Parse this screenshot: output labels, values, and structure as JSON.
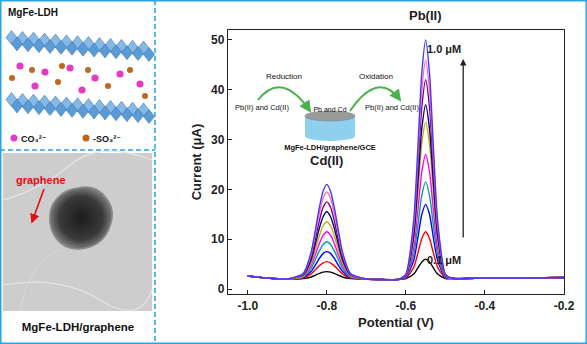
{
  "figure": {
    "schematic": {
      "title": "MgFe-LDH",
      "legend": [
        {
          "label": "CO₃²⁻",
          "color": "#e23cc4"
        },
        {
          "label": "-SO₃²⁻",
          "color": "#c0661e"
        }
      ]
    },
    "micrograph": {
      "pointer": "graphene",
      "caption": "MgFe-LDH/graphene"
    },
    "inset": {
      "reduction": "Reduction",
      "oxidation": "Oxidation",
      "species": "Pb(II) and Cd(II)",
      "deposit": "Pb and Cd",
      "electrode": "MgFe-LDH/graphene/GCE"
    }
  },
  "chart_data": {
    "type": "line",
    "xlabel": "Potential (V)",
    "ylabel": "Current (μA)",
    "peak_labels": [
      "Cd(II)",
      "Pb(II)"
    ],
    "range_labels": {
      "low": "0.1 μM",
      "high": "1.0 μM"
    },
    "x": [
      -1.0,
      -0.95,
      -0.9,
      -0.86,
      -0.84,
      -0.82,
      -0.81,
      -0.8,
      -0.79,
      -0.78,
      -0.76,
      -0.74,
      -0.7,
      -0.66,
      -0.62,
      -0.6,
      -0.58,
      -0.57,
      -0.56,
      -0.55,
      -0.54,
      -0.53,
      -0.52,
      -0.5,
      -0.48,
      -0.45,
      -0.4,
      -0.3,
      -0.2
    ],
    "series": [
      {
        "color": "#000000",
        "values": [
          2.6,
          2.2,
          2.0,
          2.1,
          2.4,
          3.1,
          3.4,
          3.5,
          3.4,
          3.1,
          2.4,
          2.1,
          2.0,
          1.9,
          1.9,
          2.1,
          3.0,
          4.2,
          5.4,
          6.0,
          5.4,
          4.2,
          3.0,
          2.1,
          2.1,
          2.1,
          2.2,
          2.2,
          2.3
        ]
      },
      {
        "color": "#ff0000",
        "values": [
          2.6,
          2.2,
          2.0,
          2.2,
          3.0,
          4.6,
          5.2,
          5.5,
          5.2,
          4.6,
          3.0,
          2.2,
          2.0,
          1.9,
          1.9,
          2.2,
          4.4,
          7.1,
          10.1,
          11.5,
          10.1,
          7.1,
          4.4,
          2.2,
          2.1,
          2.1,
          2.2,
          2.2,
          2.3
        ]
      },
      {
        "color": "#0000ff",
        "values": [
          2.6,
          2.2,
          2.0,
          2.3,
          3.5,
          6.0,
          7.1,
          7.5,
          7.1,
          6.0,
          3.5,
          2.3,
          2.0,
          1.9,
          1.9,
          2.3,
          5.8,
          10.1,
          14.9,
          17.0,
          14.9,
          10.1,
          5.8,
          2.3,
          2.1,
          2.1,
          2.2,
          2.2,
          2.3
        ]
      },
      {
        "color": "#00a0a0",
        "values": [
          2.6,
          2.2,
          2.0,
          2.4,
          4.1,
          7.5,
          8.9,
          9.5,
          8.9,
          7.5,
          4.1,
          2.4,
          2.0,
          1.9,
          1.9,
          2.4,
          6.9,
          12.5,
          18.7,
          21.5,
          18.7,
          12.5,
          6.9,
          2.4,
          2.1,
          2.1,
          2.2,
          2.2,
          2.3
        ]
      },
      {
        "color": "#ff00ff",
        "values": [
          2.6,
          2.2,
          2.0,
          2.5,
          4.7,
          8.9,
          10.7,
          11.5,
          10.7,
          8.9,
          4.7,
          2.5,
          2.0,
          1.9,
          1.9,
          2.5,
          8.3,
          15.5,
          23.4,
          27.0,
          23.4,
          15.5,
          8.3,
          2.5,
          2.1,
          2.1,
          2.2,
          2.2,
          2.3
        ]
      },
      {
        "color": "#b5b500",
        "values": [
          2.6,
          2.2,
          2.0,
          2.6,
          5.2,
          10.4,
          12.6,
          13.5,
          12.6,
          10.4,
          5.2,
          2.6,
          2.0,
          1.9,
          1.9,
          2.6,
          9.9,
          19.0,
          29.0,
          33.5,
          29.0,
          19.0,
          9.9,
          2.6,
          2.1,
          2.1,
          2.2,
          2.2,
          2.3
        ]
      },
      {
        "color": "#000080",
        "values": [
          2.6,
          2.2,
          2.0,
          2.8,
          5.8,
          11.9,
          14.4,
          15.5,
          14.4,
          11.9,
          5.8,
          2.8,
          2.0,
          1.9,
          1.9,
          2.7,
          10.8,
          20.9,
          32.0,
          37.0,
          32.0,
          20.9,
          10.8,
          2.7,
          2.1,
          2.1,
          2.2,
          2.2,
          2.3
        ]
      },
      {
        "color": "#800080",
        "values": [
          2.6,
          2.2,
          2.0,
          2.9,
          6.3,
          13.3,
          16.3,
          17.5,
          16.3,
          13.3,
          6.3,
          2.9,
          2.0,
          1.9,
          1.9,
          2.8,
          12.0,
          23.6,
          36.3,
          42.0,
          36.3,
          23.6,
          12.0,
          2.8,
          2.1,
          2.1,
          2.2,
          2.2,
          2.3
        ]
      },
      {
        "color": "#ff69b4",
        "values": [
          2.6,
          2.2,
          2.0,
          3.0,
          6.9,
          14.8,
          18.1,
          19.5,
          18.1,
          14.8,
          6.9,
          3.0,
          2.0,
          1.9,
          1.9,
          2.9,
          13.0,
          25.8,
          39.7,
          46.0,
          39.7,
          25.8,
          13.0,
          2.9,
          2.1,
          2.1,
          2.2,
          2.2,
          2.3
        ]
      },
      {
        "color": "#3c3cff",
        "values": [
          2.6,
          2.2,
          2.0,
          3.1,
          7.3,
          15.9,
          19.5,
          21.0,
          19.5,
          15.9,
          7.3,
          3.1,
          2.0,
          1.9,
          1.9,
          3.0,
          14.0,
          27.9,
          43.1,
          50.0,
          43.1,
          27.9,
          14.0,
          3.0,
          2.1,
          2.1,
          2.2,
          2.2,
          2.3
        ]
      }
    ],
    "xlim": [
      -1.05,
      -0.2
    ],
    "ylim": [
      -1,
      52
    ],
    "xticks": [
      {
        "value": -1.0,
        "label": "-1.0"
      },
      -0.8,
      -0.6,
      -0.4,
      -0.2
    ],
    "yticks": [
      0,
      10,
      20,
      30,
      40,
      50
    ],
    "grid": false,
    "marker": "none",
    "line_style": "solid"
  }
}
